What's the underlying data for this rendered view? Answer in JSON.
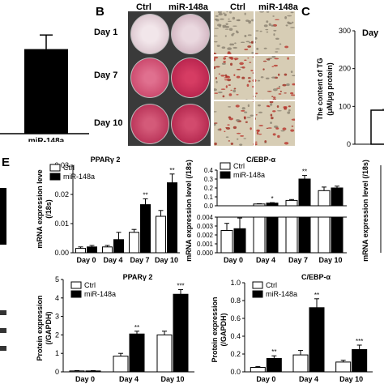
{
  "panels": {
    "b_letter": "B",
    "c_letter": "C",
    "e_letter": "E"
  },
  "panel_b": {
    "col_headers": [
      "Ctrl",
      "miR-148a",
      "Ctrl",
      "miR-148a"
    ],
    "row_labels": [
      "Day 1",
      "Day 7",
      "Day 10"
    ],
    "dish_colors": {
      "day1": [
        "#e6d3da",
        "#ddc2cc"
      ],
      "day7": [
        "#d9547a",
        "#cc2f57"
      ],
      "day10": [
        "#c93f62",
        "#c73257"
      ]
    }
  },
  "panel_c": {
    "ylabel": "The content of TG (μM/μg protein)",
    "title_partial": "Day"
  },
  "chart_data": [
    {
      "type": "bar",
      "panel": "A (partial)",
      "categories": [
        "miR-148a"
      ],
      "values": [
        0.72
      ],
      "errors": [
        0.12
      ],
      "title": "",
      "xlabel": "",
      "ylabel": "",
      "ylim": [
        0,
        1
      ]
    },
    {
      "type": "bar",
      "panel": "C (partial)",
      "categories": [
        ""
      ],
      "values": [
        90
      ],
      "ylim": [
        0,
        300
      ],
      "yticks": [
        "0",
        "100",
        "200",
        "300"
      ],
      "ylabel": "The content of TG (μM/μg protein)"
    },
    {
      "type": "bar",
      "panel": "E - PPARγ2 mRNA",
      "title": "PPARγ 2",
      "categories": [
        "Day 0",
        "Day 4",
        "Day 7",
        "Day 10"
      ],
      "series": [
        {
          "name": "Ctrl",
          "values": [
            0.0015,
            0.002,
            0.007,
            0.0125
          ],
          "errors": [
            0.0005,
            0.0005,
            0.001,
            0.002
          ]
        },
        {
          "name": "miR-148a",
          "values": [
            0.002,
            0.0045,
            0.0165,
            0.024
          ],
          "errors": [
            0.0005,
            0.0025,
            0.002,
            0.003
          ]
        }
      ],
      "significance": [
        "",
        "",
        "**",
        "**"
      ],
      "ylabel": "mRNA expression leve (/18s)",
      "ylim": [
        0,
        0.03
      ],
      "yticks": [
        "0.00",
        "0.01",
        "0.02",
        "0.03"
      ]
    },
    {
      "type": "bar",
      "panel": "E - C/EBP-α mRNA",
      "title": "C/EBP-α",
      "categories": [
        "Day 0",
        "Day 4",
        "Day 7",
        "Day 10"
      ],
      "series": [
        {
          "name": "Ctrl",
          "values": [
            0.0025,
            0.02,
            0.06,
            0.17
          ],
          "errors": [
            0.0008,
            0.003,
            0.01,
            0.04
          ]
        },
        {
          "name": "miR-148a",
          "values": [
            0.0027,
            0.03,
            0.3,
            0.2
          ],
          "errors": [
            0.0012,
            0.005,
            0.04,
            0.02
          ]
        }
      ],
      "significance": [
        "",
        "*",
        "**",
        ""
      ],
      "ylabel": "mRNA expression level (/18s)",
      "broken_axis": true,
      "lower_yticks": [
        "0.000",
        "0.001",
        "0.002",
        "0.003",
        "0.004"
      ],
      "upper_yticks": [
        "0.0",
        "0.1",
        "0.2",
        "0.3",
        "0.4"
      ]
    },
    {
      "type": "bar",
      "panel": "E - right (partial)",
      "ylabel": "mRNA expression level (/18s)"
    },
    {
      "type": "bar",
      "panel": "Protein - PPARγ2",
      "title": "PPARγ 2",
      "categories": [
        "Day 0",
        "Day 4",
        "Day 10"
      ],
      "series": [
        {
          "name": "Ctrl",
          "values": [
            0.05,
            0.85,
            2.0
          ],
          "errors": [
            0.02,
            0.15,
            0.2
          ]
        },
        {
          "name": "miR-148a",
          "values": [
            0.05,
            2.05,
            4.2
          ],
          "errors": [
            0.02,
            0.15,
            0.25
          ]
        }
      ],
      "significance": [
        "",
        "**",
        "***"
      ],
      "ylabel": "Protein expression (/GAPDH)",
      "ylim": [
        0,
        5
      ],
      "yticks": [
        "0",
        "1",
        "2",
        "3",
        "4",
        "5"
      ]
    },
    {
      "type": "bar",
      "panel": "Protein - C/EBP-α",
      "title": "C/EBP-α",
      "categories": [
        "Day 0",
        "Day 4",
        "Day 10"
      ],
      "series": [
        {
          "name": "Ctrl",
          "values": [
            0.05,
            0.19,
            0.11
          ],
          "errors": [
            0.01,
            0.05,
            0.02
          ]
        },
        {
          "name": "miR-148a",
          "values": [
            0.15,
            0.72,
            0.25
          ],
          "errors": [
            0.03,
            0.1,
            0.05
          ]
        }
      ],
      "significance": [
        "**",
        "**",
        "***"
      ],
      "ylabel": "Protein expression (/GAPDH)",
      "ylim": [
        0,
        1.0
      ],
      "yticks": [
        "0.0",
        "0.2",
        "0.4",
        "0.6",
        "0.8",
        "1.0"
      ]
    }
  ]
}
